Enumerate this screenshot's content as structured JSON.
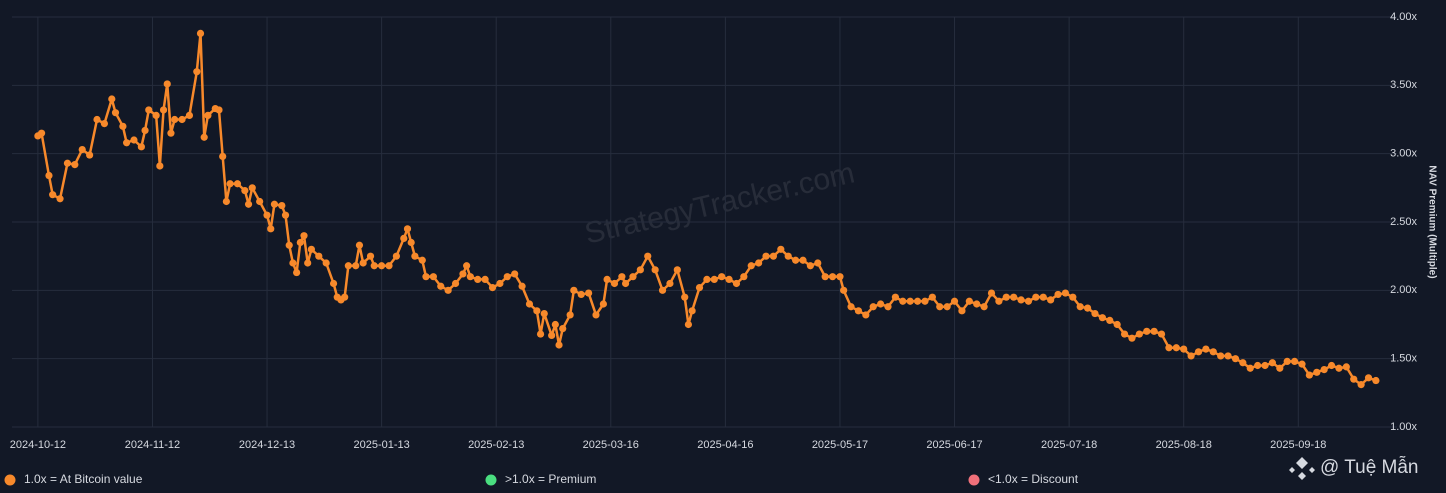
{
  "chart_data": {
    "type": "line",
    "y_axis_label": "NAV Premium (Multiple)",
    "watermark": "StrategyTracker.com",
    "credit": "@ Tuệ Mẫn",
    "grid": true,
    "xlim": [
      "2024-10-05",
      "2025-10-12"
    ],
    "ylim": [
      1,
      4
    ],
    "yticks": [
      {
        "value": 1,
        "label": "1.00x"
      },
      {
        "value": 1.5,
        "label": "1.50x"
      },
      {
        "value": 2,
        "label": "2.00x"
      },
      {
        "value": 2.5,
        "label": "2.50x"
      },
      {
        "value": 3,
        "label": "3.00x"
      },
      {
        "value": 3.5,
        "label": "3.50x"
      },
      {
        "value": 4,
        "label": "4.00x"
      }
    ],
    "xticks": [
      "2024-10-12",
      "2024-11-12",
      "2024-12-13",
      "2025-01-13",
      "2025-02-13",
      "2025-03-16",
      "2025-04-16",
      "2025-05-17",
      "2025-06-17",
      "2025-07-18",
      "2025-08-18",
      "2025-09-18"
    ],
    "legend": [
      {
        "label": "1.0x = At Bitcoin value",
        "color": "#f7892b"
      },
      {
        "label": ">1.0x = Premium",
        "color": "#4ade80"
      },
      {
        "label": "<1.0x = Discount",
        "color": "#f0707a"
      }
    ],
    "x": [
      "2024-10-12",
      "2024-10-13",
      "2024-10-15",
      "2024-10-16",
      "2024-10-18",
      "2024-10-20",
      "2024-10-22",
      "2024-10-24",
      "2024-10-26",
      "2024-10-28",
      "2024-10-30",
      "2024-11-01",
      "2024-11-02",
      "2024-11-04",
      "2024-11-05",
      "2024-11-07",
      "2024-11-09",
      "2024-11-10",
      "2024-11-11",
      "2024-11-13",
      "2024-11-14",
      "2024-11-15",
      "2024-11-16",
      "2024-11-17",
      "2024-11-18",
      "2024-11-20",
      "2024-11-22",
      "2024-11-24",
      "2024-11-25",
      "2024-11-26",
      "2024-11-27",
      "2024-11-29",
      "2024-11-30",
      "2024-12-01",
      "2024-12-02",
      "2024-12-03",
      "2024-12-05",
      "2024-12-07",
      "2024-12-08",
      "2024-12-09",
      "2024-12-11",
      "2024-12-13",
      "2024-12-14",
      "2024-12-15",
      "2024-12-17",
      "2024-12-18",
      "2024-12-19",
      "2024-12-20",
      "2024-12-21",
      "2024-12-22",
      "2024-12-23",
      "2024-12-24",
      "2024-12-25",
      "2024-12-27",
      "2024-12-29",
      "2024-12-31",
      "2025-01-01",
      "2025-01-02",
      "2025-01-03",
      "2025-01-04",
      "2025-01-06",
      "2025-01-07",
      "2025-01-08",
      "2025-01-10",
      "2025-01-11",
      "2025-01-13",
      "2025-01-15",
      "2025-01-17",
      "2025-01-19",
      "2025-01-20",
      "2025-01-21",
      "2025-01-22",
      "2025-01-24",
      "2025-01-25",
      "2025-01-27",
      "2025-01-29",
      "2025-01-31",
      "2025-02-02",
      "2025-02-04",
      "2025-02-05",
      "2025-02-06",
      "2025-02-08",
      "2025-02-10",
      "2025-02-12",
      "2025-02-14",
      "2025-02-16",
      "2025-02-18",
      "2025-02-20",
      "2025-02-22",
      "2025-02-24",
      "2025-02-25",
      "2025-02-26",
      "2025-02-28",
      "2025-03-01",
      "2025-03-02",
      "2025-03-03",
      "2025-03-05",
      "2025-03-06",
      "2025-03-08",
      "2025-03-10",
      "2025-03-12",
      "2025-03-14",
      "2025-03-15",
      "2025-03-17",
      "2025-03-19",
      "2025-03-20",
      "2025-03-22",
      "2025-03-24",
      "2025-03-26",
      "2025-03-28",
      "2025-03-30",
      "2025-04-01",
      "2025-04-03",
      "2025-04-05",
      "2025-04-06",
      "2025-04-07",
      "2025-04-09",
      "2025-04-11",
      "2025-04-13",
      "2025-04-15",
      "2025-04-17",
      "2025-04-19",
      "2025-04-21",
      "2025-04-23",
      "2025-04-25",
      "2025-04-27",
      "2025-04-29",
      "2025-05-01",
      "2025-05-03",
      "2025-05-05",
      "2025-05-07",
      "2025-05-09",
      "2025-05-11",
      "2025-05-13",
      "2025-05-15",
      "2025-05-17",
      "2025-05-18",
      "2025-05-20",
      "2025-05-22",
      "2025-05-24",
      "2025-05-26",
      "2025-05-28",
      "2025-05-30",
      "2025-06-01",
      "2025-06-03",
      "2025-06-05",
      "2025-06-07",
      "2025-06-09",
      "2025-06-11",
      "2025-06-13",
      "2025-06-15",
      "2025-06-17",
      "2025-06-19",
      "2025-06-21",
      "2025-06-23",
      "2025-06-25",
      "2025-06-27",
      "2025-06-29",
      "2025-07-01",
      "2025-07-03",
      "2025-07-05",
      "2025-07-07",
      "2025-07-09",
      "2025-07-11",
      "2025-07-13",
      "2025-07-15",
      "2025-07-17",
      "2025-07-19",
      "2025-07-21",
      "2025-07-23",
      "2025-07-25",
      "2025-07-27",
      "2025-07-29",
      "2025-07-31",
      "2025-08-02",
      "2025-08-04",
      "2025-08-06",
      "2025-08-08",
      "2025-08-10",
      "2025-08-12",
      "2025-08-14",
      "2025-08-16",
      "2025-08-18",
      "2025-08-20",
      "2025-08-22",
      "2025-08-24",
      "2025-08-26",
      "2025-08-28",
      "2025-08-30",
      "2025-09-01",
      "2025-09-03",
      "2025-09-05",
      "2025-09-07",
      "2025-09-09",
      "2025-09-11",
      "2025-09-13",
      "2025-09-15",
      "2025-09-17",
      "2025-09-19",
      "2025-09-21",
      "2025-09-23",
      "2025-09-25",
      "2025-09-27",
      "2025-09-29",
      "2025-10-01",
      "2025-10-03",
      "2025-10-05",
      "2025-10-07",
      "2025-10-09"
    ],
    "series": [
      {
        "color": "#f7892b",
        "values": [
          3.13,
          3.15,
          2.84,
          2.7,
          2.67,
          2.93,
          2.92,
          3.03,
          2.99,
          3.25,
          3.22,
          3.4,
          3.3,
          3.2,
          3.08,
          3.1,
          3.05,
          3.17,
          3.32,
          3.28,
          2.91,
          3.32,
          3.51,
          3.15,
          3.25,
          3.25,
          3.28,
          3.6,
          3.88,
          3.12,
          3.28,
          3.33,
          3.32,
          2.98,
          2.65,
          2.78,
          2.78,
          2.73,
          2.63,
          2.75,
          2.65,
          2.55,
          2.45,
          2.63,
          2.62,
          2.55,
          2.33,
          2.2,
          2.13,
          2.35,
          2.4,
          2.2,
          2.3,
          2.25,
          2.2,
          2.05,
          1.95,
          1.93,
          1.95,
          2.18,
          2.18,
          2.33,
          2.2,
          2.25,
          2.18,
          2.18,
          2.18,
          2.25,
          2.38,
          2.45,
          2.35,
          2.25,
          2.22,
          2.1,
          2.1,
          2.03,
          2.0,
          2.05,
          2.12,
          2.18,
          2.1,
          2.08,
          2.08,
          2.02,
          2.05,
          2.1,
          2.12,
          2.03,
          1.9,
          1.85,
          1.68,
          1.83,
          1.67,
          1.75,
          1.6,
          1.72,
          1.82,
          2.0,
          1.97,
          1.98,
          1.82,
          1.9,
          2.08,
          2.05,
          2.1,
          2.05,
          2.1,
          2.15,
          2.25,
          2.15,
          2.0,
          2.05,
          2.15,
          1.95,
          1.75,
          1.85,
          2.02,
          2.08,
          2.08,
          2.1,
          2.08,
          2.05,
          2.1,
          2.18,
          2.2,
          2.25,
          2.25,
          2.3,
          2.25,
          2.22,
          2.22,
          2.18,
          2.2,
          2.1,
          2.1,
          2.1,
          2.0,
          1.88,
          1.85,
          1.82,
          1.88,
          1.9,
          1.88,
          1.95,
          1.92,
          1.92,
          1.92,
          1.92,
          1.95,
          1.88,
          1.88,
          1.92,
          1.85,
          1.92,
          1.9,
          1.88,
          1.98,
          1.92,
          1.95,
          1.95,
          1.93,
          1.92,
          1.95,
          1.95,
          1.93,
          1.97,
          1.98,
          1.95,
          1.88,
          1.87,
          1.83,
          1.8,
          1.78,
          1.75,
          1.68,
          1.65,
          1.68,
          1.7,
          1.7,
          1.68,
          1.58,
          1.58,
          1.57,
          1.52,
          1.55,
          1.57,
          1.55,
          1.52,
          1.52,
          1.5,
          1.47,
          1.43,
          1.45,
          1.45,
          1.47,
          1.43,
          1.48,
          1.48,
          1.46,
          1.38,
          1.4,
          1.42,
          1.45,
          1.43,
          1.44,
          1.35,
          1.31,
          1.36,
          1.34
        ]
      }
    ]
  }
}
